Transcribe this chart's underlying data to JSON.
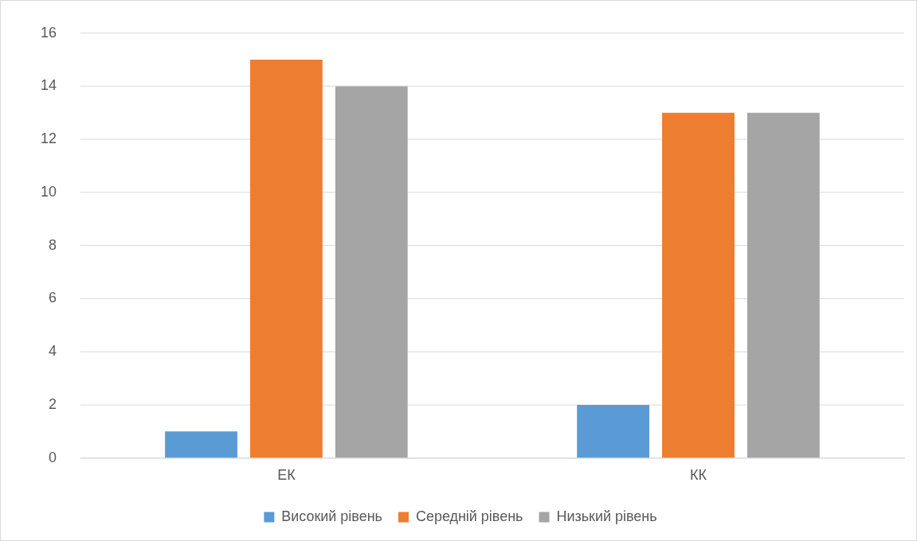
{
  "chart_data": {
    "type": "bar",
    "categories": [
      "ЕК",
      "КК"
    ],
    "series": [
      {
        "name": "Високий рівень",
        "color": "#5b9bd5",
        "values": [
          1,
          2
        ]
      },
      {
        "name": "Середній рівень",
        "color": "#ed7d31",
        "values": [
          15,
          13
        ]
      },
      {
        "name": "Низький рівень",
        "color": "#a5a5a5",
        "values": [
          14,
          13
        ]
      }
    ],
    "ylim": [
      0,
      16
    ],
    "yticks": [
      0,
      2,
      4,
      6,
      8,
      10,
      12,
      14,
      16
    ],
    "grid": "y",
    "legend": "bottom"
  }
}
